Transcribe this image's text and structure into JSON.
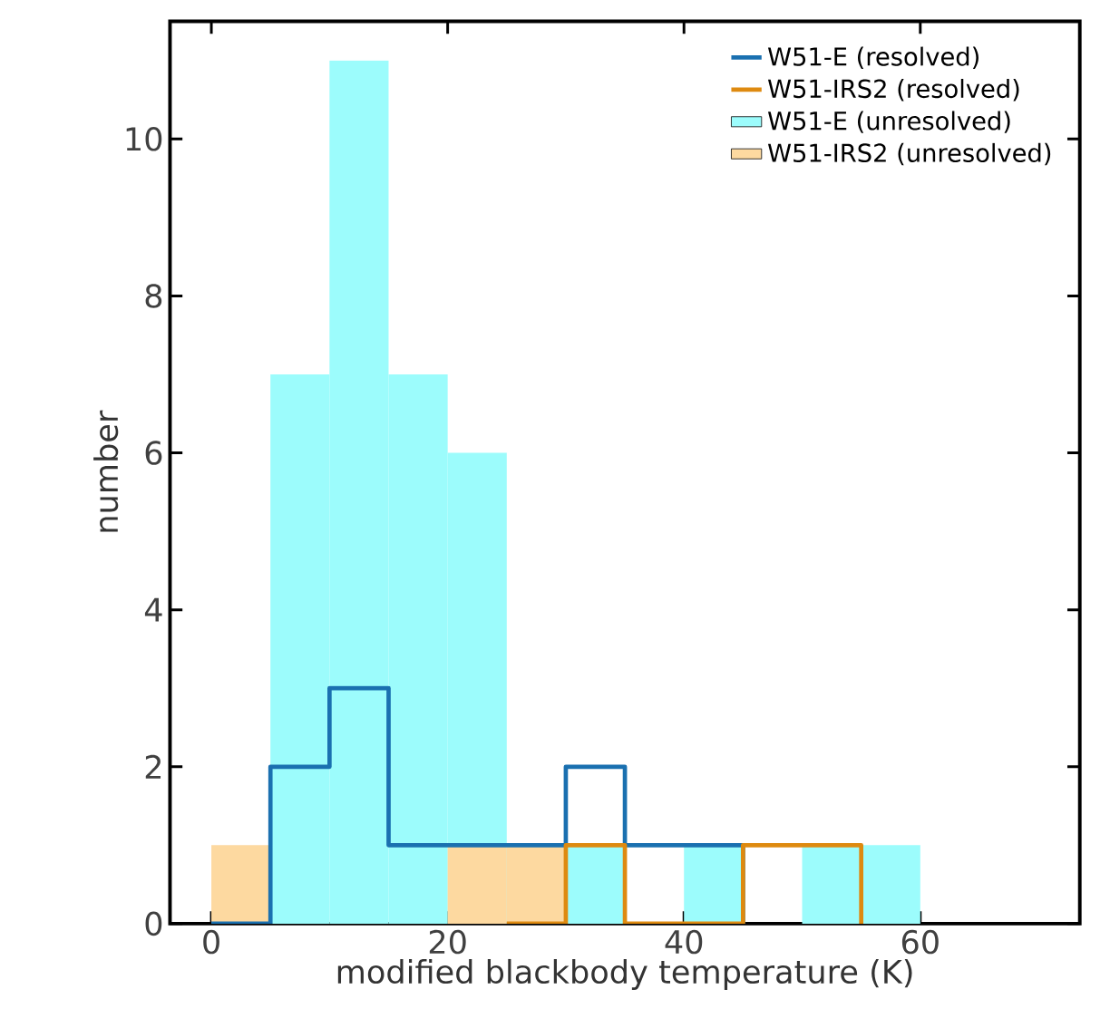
{
  "chart_data": {
    "type": "histogram",
    "xlabel": "modified blackbody temperature (K)",
    "ylabel": "number",
    "bins": [
      0,
      5,
      10,
      15,
      20,
      25,
      30,
      35,
      40,
      45,
      50,
      55,
      60
    ],
    "series": [
      {
        "name": "W51-E (resolved)",
        "type": "step",
        "color": "#1a70b0",
        "x": [
          0,
          5,
          10,
          15,
          20,
          25,
          30,
          35,
          40,
          45
        ],
        "values": [
          0,
          2,
          3,
          1,
          1,
          1,
          2,
          1,
          1,
          0
        ]
      },
      {
        "name": "W51-IRS2 (resolved)",
        "type": "step",
        "color": "#de8a10",
        "x": [
          25,
          30,
          35,
          45,
          55
        ],
        "values": [
          0,
          1,
          0,
          1,
          0
        ]
      },
      {
        "name": "W51-E (unresolved)",
        "color": "#9cfcfc",
        "values": [
          0,
          7,
          11,
          7,
          6,
          0,
          1,
          0,
          1,
          0,
          1,
          1
        ]
      },
      {
        "name": "W51-IRS2 (unresolved)",
        "color": "#fdd9a0",
        "values": [
          1,
          0,
          0,
          0,
          1,
          1,
          0,
          0,
          0,
          0,
          0,
          0
        ]
      }
    ],
    "xlim": [
      -3.5,
      73.5
    ],
    "ylim": [
      0,
      11.5
    ],
    "xticks": [
      0,
      20,
      40,
      60
    ],
    "yticks": [
      0,
      2,
      4,
      6,
      8,
      10
    ],
    "legend": "top right",
    "grid": false,
    "marker": "none"
  }
}
